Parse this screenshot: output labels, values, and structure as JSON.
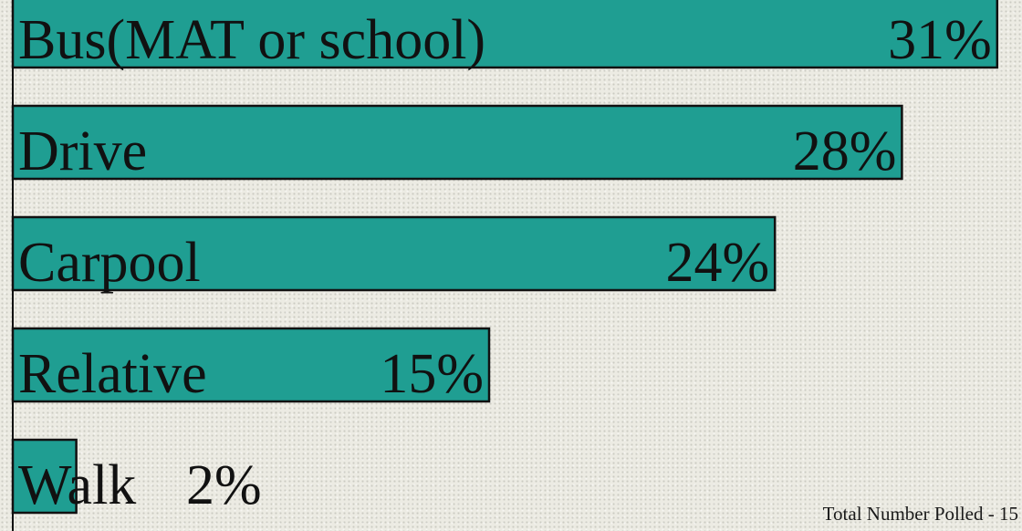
{
  "chart_data": {
    "type": "bar",
    "orientation": "horizontal",
    "categories": [
      "Bus(MAT or school)",
      "Drive",
      "Carpool",
      "Relative",
      "Walk"
    ],
    "values": [
      31,
      28,
      24,
      15,
      2
    ],
    "value_labels": [
      "31%",
      "28%",
      "24%",
      "15%",
      "2%"
    ],
    "unit": "%",
    "bar_color": "#1f9e92",
    "xlim": [
      0,
      32
    ],
    "grid": false,
    "legend": "none"
  },
  "footnote": "Total Number Polled - 15"
}
